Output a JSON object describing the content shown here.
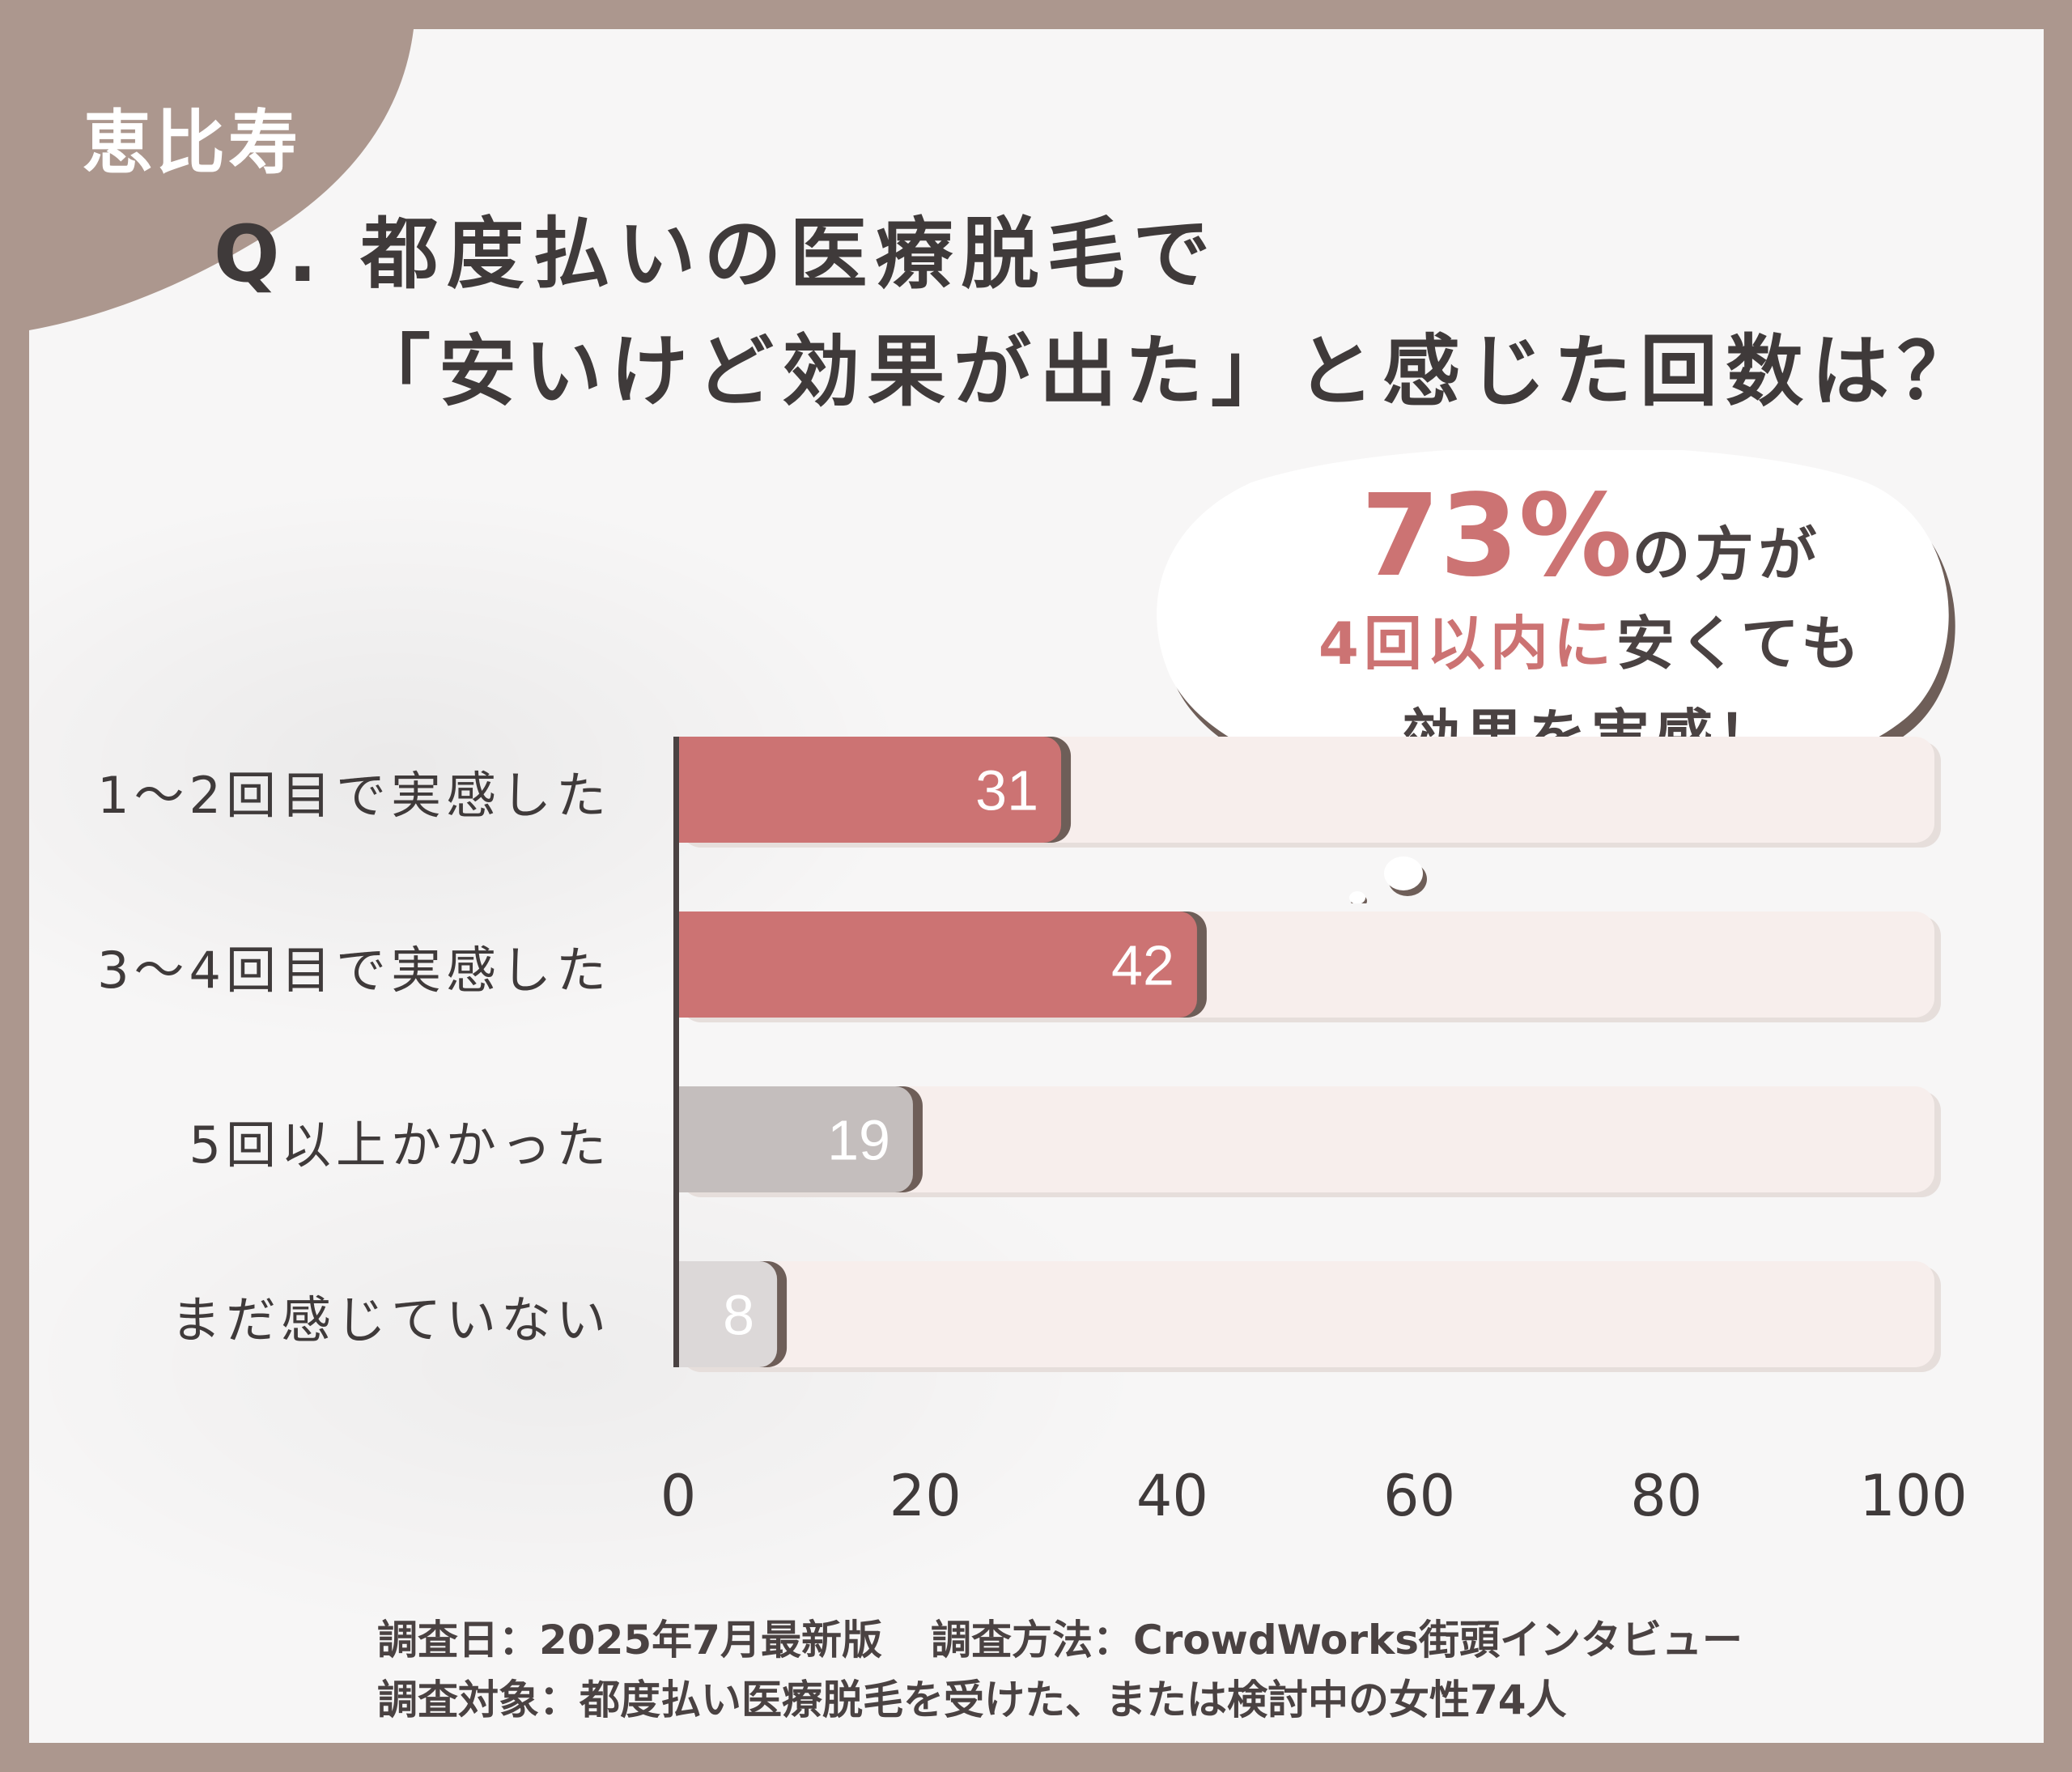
{
  "area_label": "恵比寿",
  "title_line1": "Q. 都度払いの医療脱毛で",
  "title_line2": "「安いけど効果が出た」と感じた回数は？",
  "callout": {
    "percent": "73%",
    "line1_rest": "の方が",
    "line2_accent": "4回以内に",
    "line2_rest": "安くても",
    "line3": "効果を実感！"
  },
  "footer": {
    "date": "調査日：2025年7月最新版",
    "method": "調査方法：CrowdWorks街頭インタビュー",
    "target": "調査対象：都度払い医療脱毛を受けた、または検討中の女性74人"
  },
  "colors": {
    "background_frame": "#ac978e",
    "accent": "#cc7373",
    "gray_bar": "#c4bebd",
    "light_gray_bar": "#dcd8d8",
    "track": "#f7eeec"
  },
  "chart_data": {
    "type": "bar",
    "orientation": "horizontal",
    "categories": [
      "1〜2回目で実感した",
      "3〜4回目で実感した",
      "5回以上かかった",
      "まだ感じていない"
    ],
    "values": [
      31,
      42,
      19,
      8
    ],
    "bar_colors": [
      "#cc7373",
      "#cc7373",
      "#c4bebd",
      "#dcd8d8"
    ],
    "xlim": [
      0,
      100
    ],
    "xticks": [
      0,
      20,
      40,
      60,
      80,
      100
    ],
    "title": "",
    "xlabel": "",
    "ylabel": "",
    "grid": false,
    "legend": "none"
  }
}
